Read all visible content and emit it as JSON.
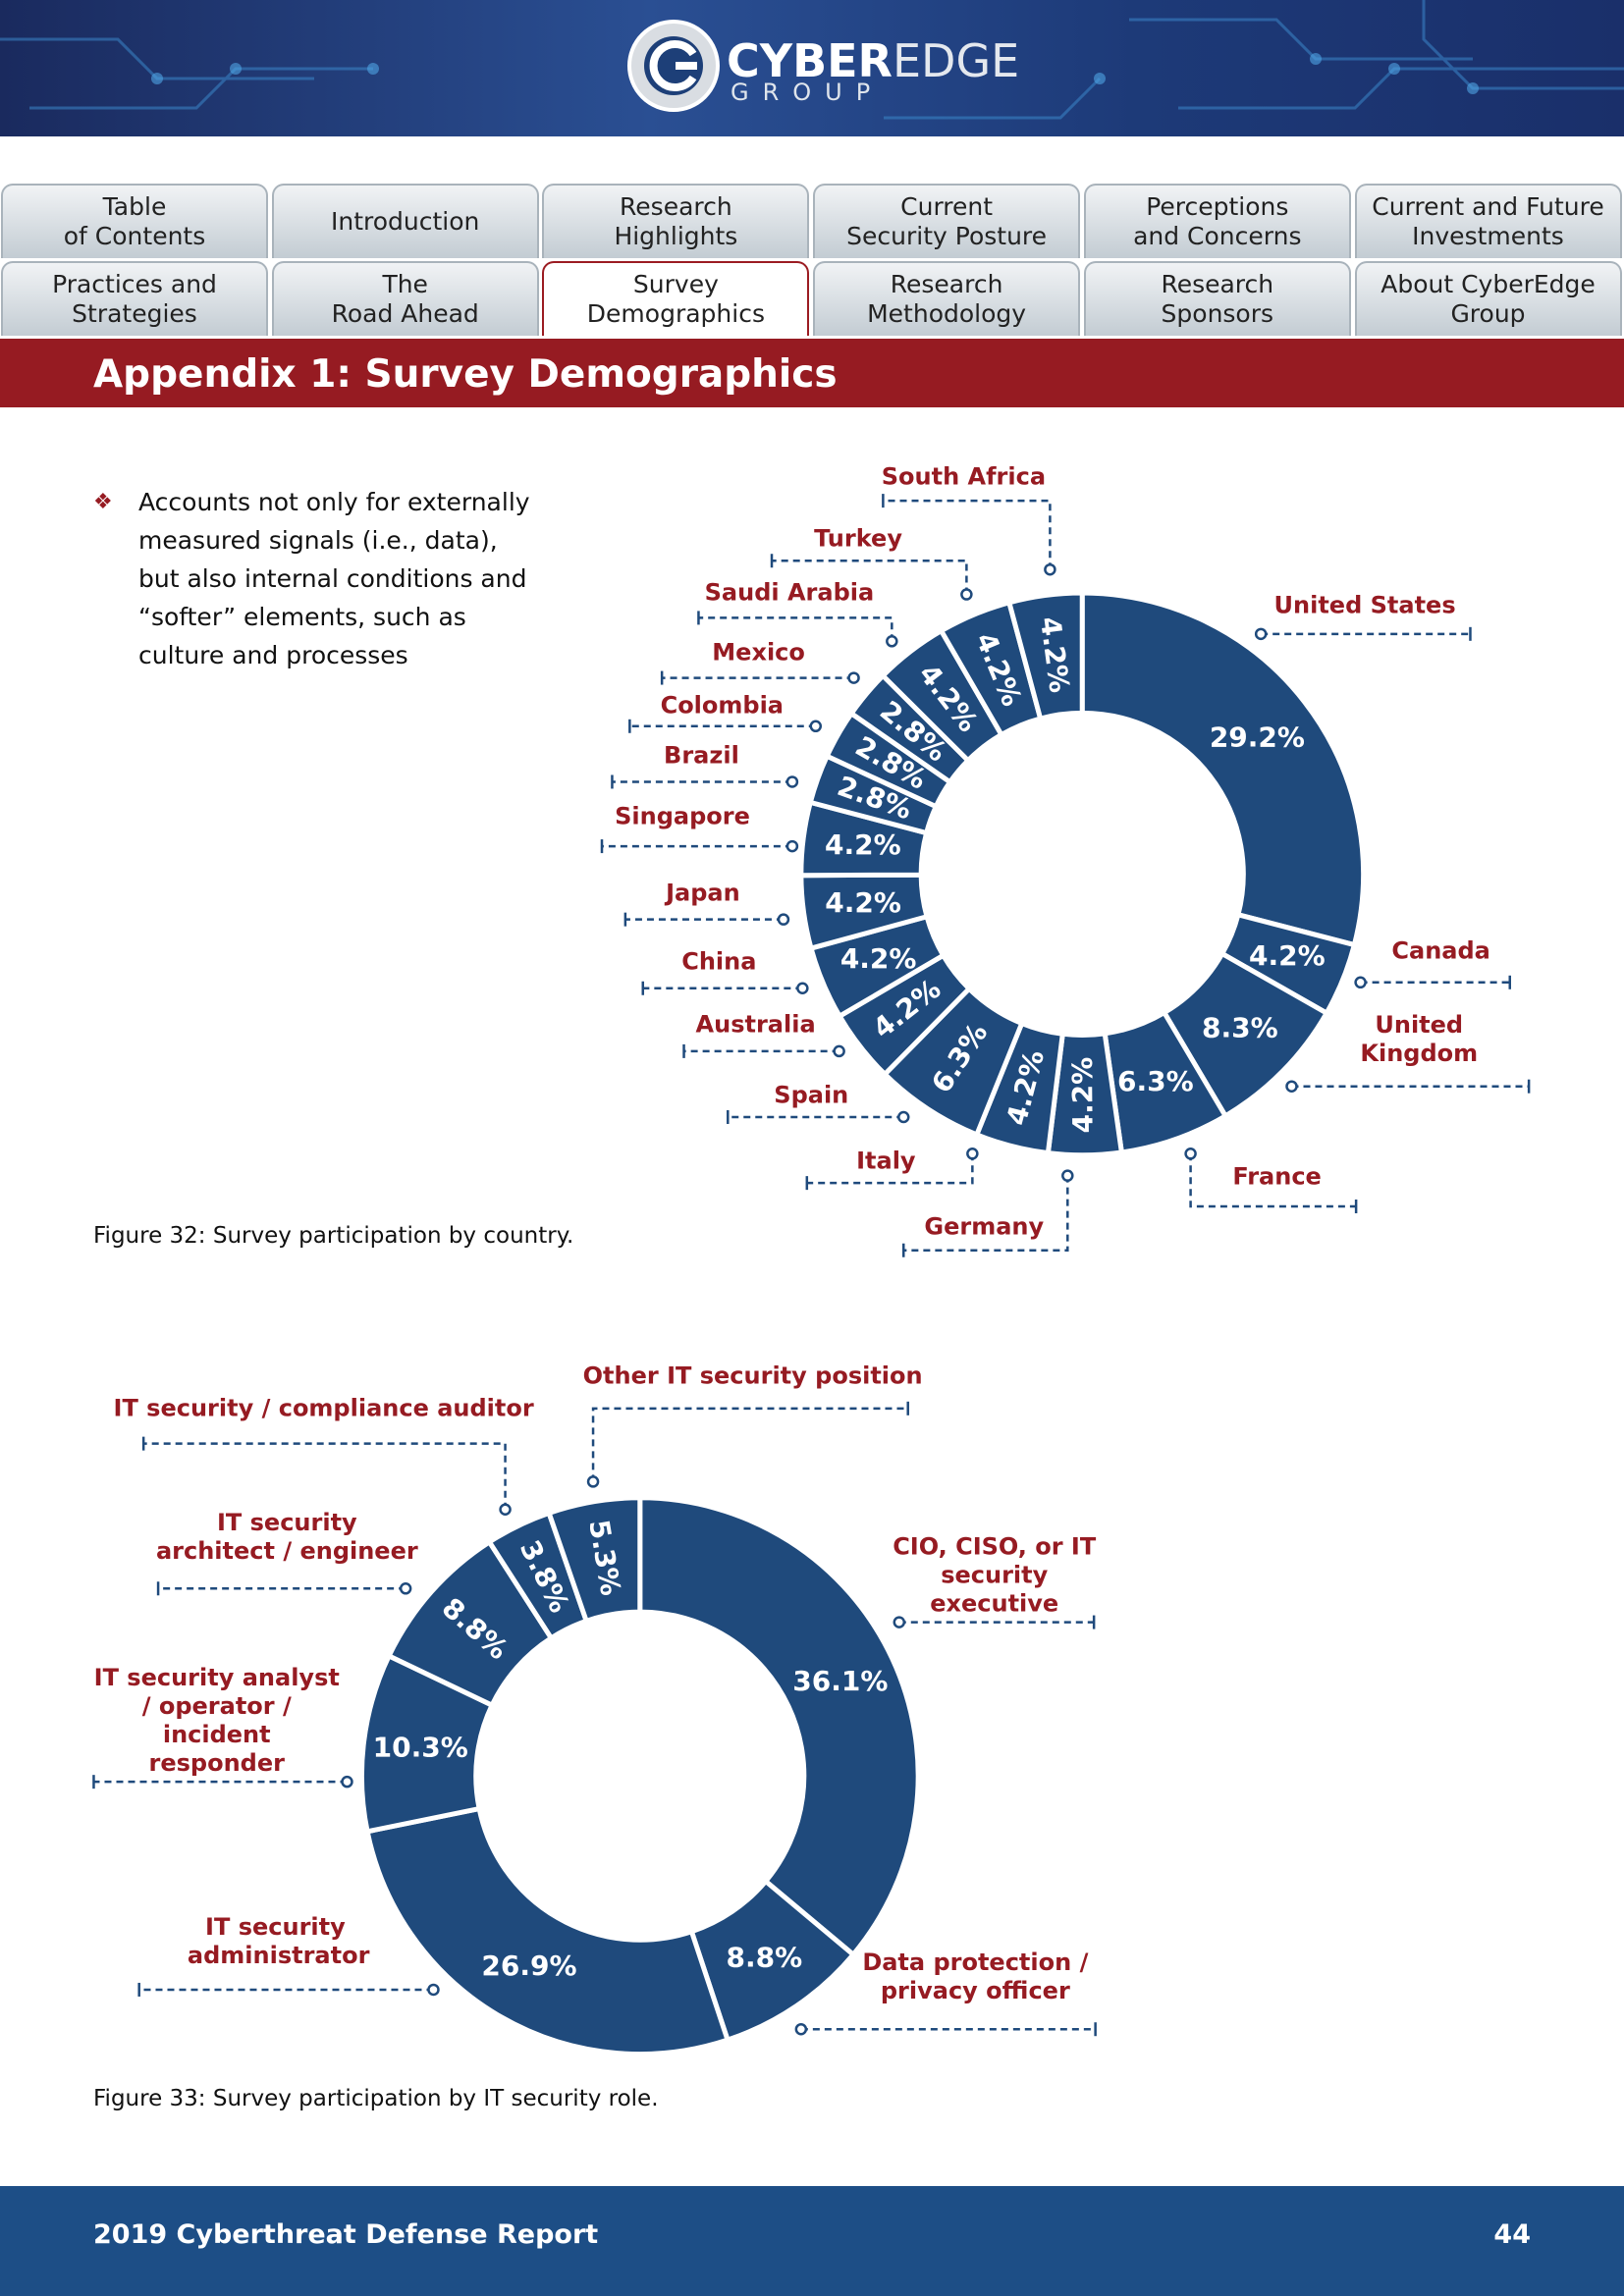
{
  "header": {
    "logo_main_1": "CYBER",
    "logo_main_2": "EDGE",
    "logo_sub": "GROUP"
  },
  "nav": {
    "tabs": [
      [
        "Table",
        "of Contents"
      ],
      [
        "Introduction"
      ],
      [
        "Research",
        "Highlights"
      ],
      [
        "Current",
        "Security Posture"
      ],
      [
        "Perceptions",
        "and Concerns"
      ],
      [
        "Current and Future",
        "Investments"
      ],
      [
        "Practices and",
        "Strategies"
      ],
      [
        "The",
        "Road Ahead"
      ],
      [
        "Survey",
        "Demographics"
      ],
      [
        "Research",
        "Methodology"
      ],
      [
        "Research",
        "Sponsors"
      ],
      [
        "About CyberEdge",
        "Group"
      ]
    ]
  },
  "section_title": "Appendix 1: Survey Demographics",
  "bullet": "Accounts not only for externally measured signals (i.e., data), but also internal conditions and “softer” elements, such as culture and processes",
  "chart_data": [
    {
      "type": "donut",
      "caption": "Figure 32: Survey participation by country.",
      "color": "#1f4a7c",
      "categories": [
        "United States",
        "Canada",
        "United Kingdom",
        "France",
        "Germany",
        "Italy",
        "Spain",
        "Australia",
        "China",
        "Japan",
        "Singapore",
        "Brazil",
        "Colombia",
        "Mexico",
        "Saudi Arabia",
        "Turkey",
        "South Africa"
      ],
      "values": [
        29.2,
        4.2,
        8.3,
        6.3,
        4.2,
        4.2,
        6.3,
        4.2,
        4.2,
        4.2,
        4.2,
        2.8,
        2.8,
        2.8,
        4.2,
        4.2,
        4.2
      ],
      "value_labels": [
        "29.2%",
        "4.2%",
        "8.3%",
        "6.3%",
        "4.2%",
        "4.2%",
        "6.3%",
        "4.2%",
        "4.2%",
        "4.2%",
        "4.2%",
        "2.8%",
        "2.8%",
        "2.8%",
        "4.2%",
        "4.2%",
        "4.2%"
      ]
    },
    {
      "type": "donut",
      "caption": "Figure 33: Survey participation by IT security role.",
      "color": "#1f4a7c",
      "categories": [
        "CIO, CISO, or IT security executive",
        "Data protection / privacy officer",
        "IT security administrator",
        "IT security analyst / operator / incident responder",
        "IT security architect / engineer",
        "IT security / compliance auditor",
        "Other IT security position"
      ],
      "values": [
        36.1,
        8.8,
        26.9,
        10.3,
        8.8,
        3.8,
        5.3
      ],
      "value_labels": [
        "36.1%",
        "8.8%",
        "26.9%",
        "10.3%",
        "8.8%",
        "3.8%",
        "5.3%"
      ]
    }
  ],
  "footer": {
    "title": "2019 Cyberthreat Defense Report",
    "page": "44"
  }
}
